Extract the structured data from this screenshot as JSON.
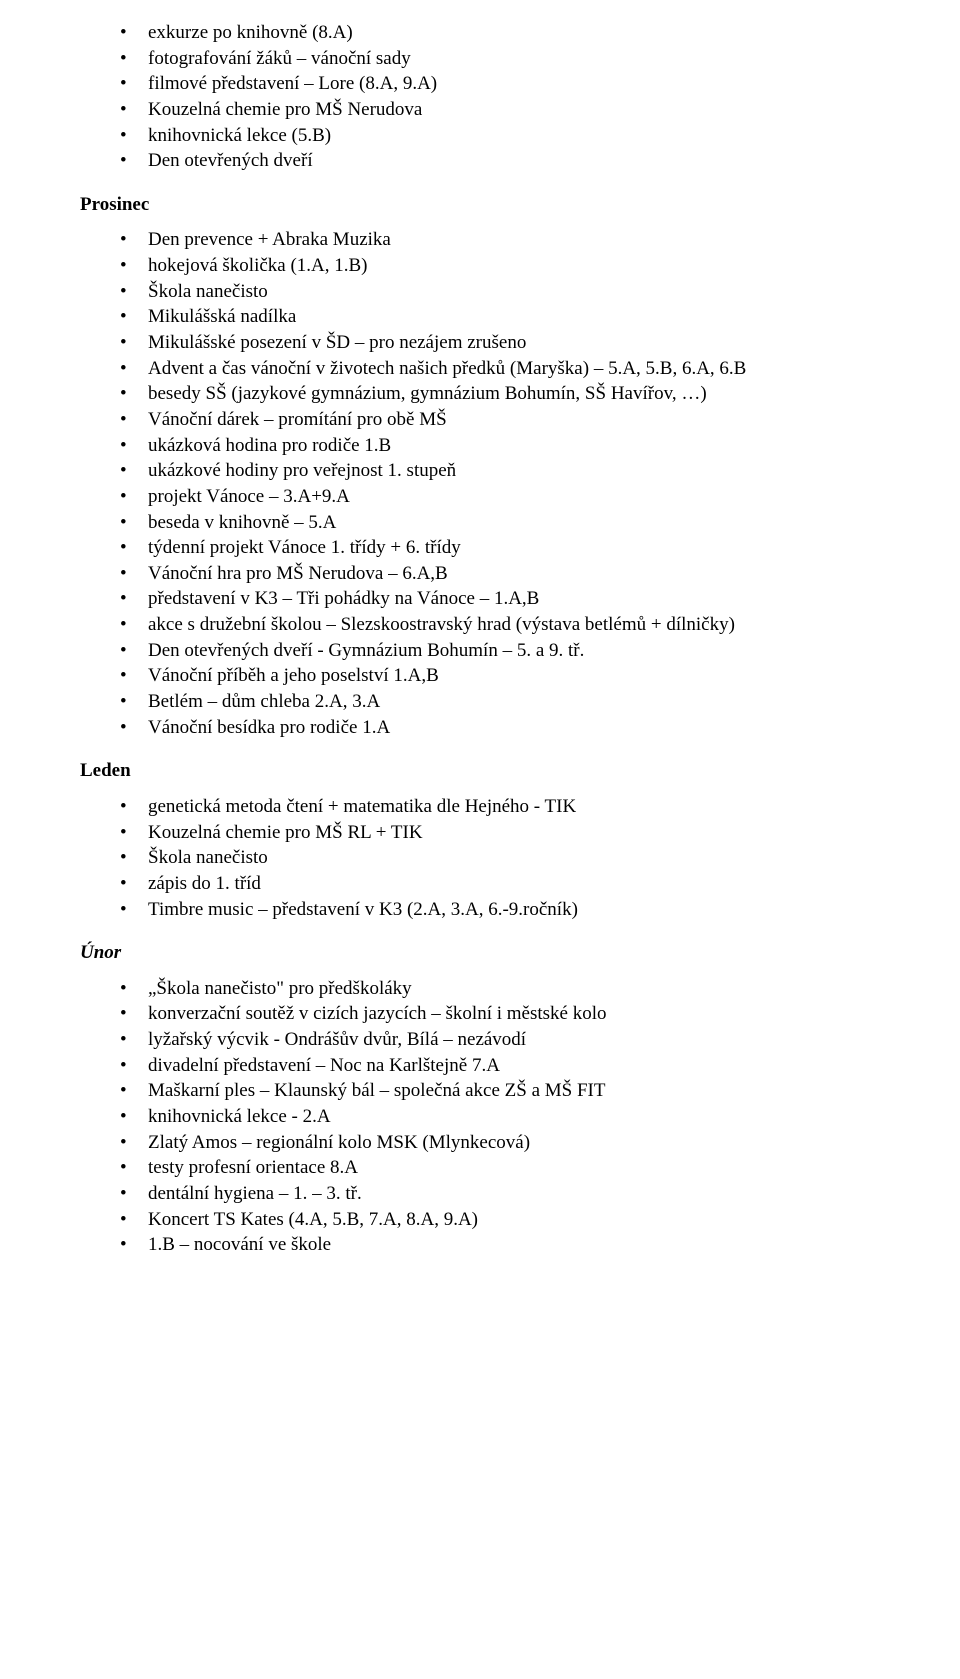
{
  "font_family": "Times New Roman",
  "font_size_pt": 14,
  "text_color": "#000000",
  "background_color": "#ffffff",
  "sections": [
    {
      "heading": null,
      "heading_style": null,
      "items": [
        "exkurze po knihovně (8.A)",
        "fotografování žáků – vánoční sady",
        "filmové představení – Lore (8.A, 9.A)",
        "Kouzelná chemie pro MŠ Nerudova",
        "knihovnická lekce (5.B)",
        "Den otevřených dveří"
      ]
    },
    {
      "heading": "Prosinec",
      "heading_style": "bold",
      "items": [
        "Den prevence + Abraka Muzika",
        "hokejová školička (1.A, 1.B)",
        "Škola nanečisto",
        "Mikulášská nadílka",
        "Mikulášské posezení v ŠD – pro nezájem zrušeno",
        "Advent a čas vánoční v životech našich předků (Maryška) – 5.A, 5.B, 6.A, 6.B",
        "besedy SŠ (jazykové gymnázium, gymnázium Bohumín, SŠ Havířov, …)",
        "Vánoční dárek – promítání pro obě MŠ",
        "ukázková hodina pro rodiče 1.B",
        "ukázkové hodiny pro veřejnost 1. stupeň",
        "projekt Vánoce – 3.A+9.A",
        "beseda v knihovně – 5.A",
        "týdenní projekt Vánoce 1. třídy + 6. třídy",
        "Vánoční hra pro MŠ Nerudova – 6.A,B",
        "představení v K3 – Tři pohádky na Vánoce – 1.A,B",
        "akce s družební školou – Slezskoostravský hrad (výstava betlémů + dílničky)",
        "Den otevřených dveří - Gymnázium Bohumín – 5. a 9. tř.",
        "Vánoční příběh a jeho poselství 1.A,B",
        "Betlém – dům chleba 2.A, 3.A",
        "Vánoční besídka pro rodiče 1.A"
      ]
    },
    {
      "heading": "Leden",
      "heading_style": "bold",
      "items": [
        "genetická metoda čtení + matematika dle Hejného - TIK",
        "Kouzelná chemie pro MŠ RL + TIK",
        "Škola nanečisto",
        "zápis do 1. tříd",
        "Timbre music – představení v K3 (2.A, 3.A, 6.-9.ročník)"
      ]
    },
    {
      "heading": "Únor",
      "heading_style": "bold-italic",
      "items": [
        "„Škola nanečisto\" pro předškoláky",
        "konverzační soutěž v cizích jazycích – školní i městské kolo",
        "lyžařský výcvik - Ondrášův dvůr, Bílá – nezávodí",
        "divadelní představení – Noc na Karlštejně 7.A",
        "Maškarní ples – Klaunský bál – společná akce ZŠ a MŠ FIT",
        "knihovnická lekce - 2.A",
        "Zlatý Amos – regionální kolo MSK (Mlynkecová)",
        "testy profesní orientace 8.A",
        "dentální hygiena – 1. – 3. tř.",
        "Koncert TS Kates (4.A, 5.B, 7.A, 8.A, 9.A)",
        "1.B – nocování ve škole"
      ]
    }
  ]
}
